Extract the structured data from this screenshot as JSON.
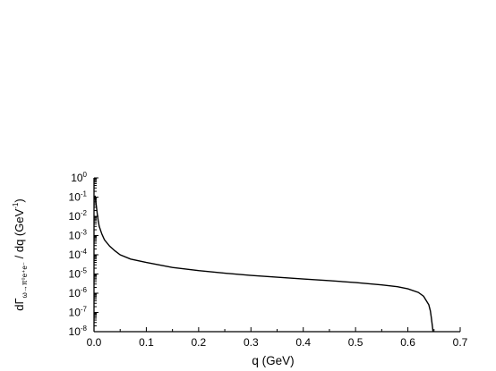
{
  "chart_data": {
    "type": "line",
    "title": "",
    "xlabel": "q (GeV)",
    "ylabel_parts": {
      "main": "dΓ",
      "subscript": "ω→π⁰e⁺e⁻",
      "rest": " / dq (GeV",
      "exponent": "-1",
      "close": ")"
    },
    "xlim": [
      0.0,
      0.7
    ],
    "ylim": [
      1e-08,
      1
    ],
    "yscale": "log",
    "grid": false,
    "x_ticks": [
      "0.0",
      "0.1",
      "0.2",
      "0.3",
      "0.4",
      "0.5",
      "0.6",
      "0.7"
    ],
    "y_ticks": [
      {
        "base": "10",
        "exp": "0"
      },
      {
        "base": "10",
        "exp": "-1"
      },
      {
        "base": "10",
        "exp": "-2"
      },
      {
        "base": "10",
        "exp": "-3"
      },
      {
        "base": "10",
        "exp": "-4"
      },
      {
        "base": "10",
        "exp": "-5"
      },
      {
        "base": "10",
        "exp": "-6"
      },
      {
        "base": "10",
        "exp": "-7"
      },
      {
        "base": "10",
        "exp": "-8"
      }
    ],
    "series": [
      {
        "x": [
          0.002,
          0.004,
          0.006,
          0.008,
          0.01,
          0.015,
          0.02,
          0.03,
          0.04,
          0.05,
          0.07,
          0.1,
          0.15,
          0.2,
          0.25,
          0.3,
          0.35,
          0.4,
          0.45,
          0.5,
          0.55,
          0.58,
          0.6,
          0.62,
          0.63,
          0.64,
          0.643,
          0.645,
          0.647,
          0.648
        ],
        "y": [
          0.12,
          0.045,
          0.015,
          0.006,
          0.003,
          0.0012,
          0.0006,
          0.00028,
          0.00016,
          0.0001,
          6e-05,
          4e-05,
          2.2e-05,
          1.5e-05,
          1.1e-05,
          8.5e-06,
          6.8e-06,
          5.5e-06,
          4.5e-06,
          3.6e-06,
          2.7e-06,
          2.2e-06,
          1.7e-06,
          1.1e-06,
          7e-07,
          2.5e-07,
          1.2e-07,
          5e-08,
          1.8e-08,
          1e-08
        ]
      }
    ]
  }
}
